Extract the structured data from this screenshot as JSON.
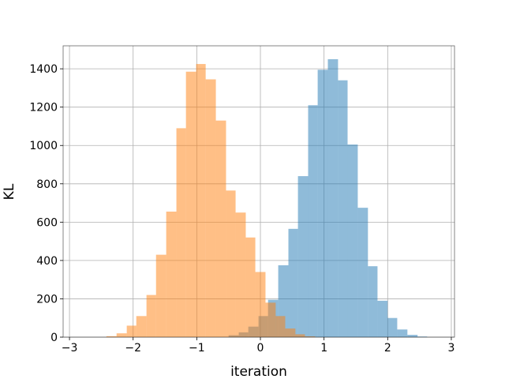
{
  "chart_data": {
    "type": "histogram",
    "xlabel": "iteration",
    "ylabel": "KL",
    "xlim": [
      -3.1,
      3.05
    ],
    "ylim": [
      0,
      1520
    ],
    "x_ticks": [
      -3,
      -2,
      -1,
      0,
      1,
      2,
      3
    ],
    "y_ticks": [
      0,
      200,
      400,
      600,
      800,
      1000,
      1200,
      1400
    ],
    "grid": true,
    "bin_width": 0.157,
    "series": [
      {
        "color": "#1f77b4",
        "opacity": 0.5,
        "bins": [
          {
            "x0": -0.5,
            "x1": -0.34,
            "count": 10
          },
          {
            "x0": -0.34,
            "x1": -0.19,
            "count": 25
          },
          {
            "x0": -0.19,
            "x1": -0.03,
            "count": 55
          },
          {
            "x0": -0.03,
            "x1": 0.12,
            "count": 110
          },
          {
            "x0": 0.12,
            "x1": 0.28,
            "count": 195
          },
          {
            "x0": 0.28,
            "x1": 0.44,
            "count": 375
          },
          {
            "x0": 0.44,
            "x1": 0.59,
            "count": 565
          },
          {
            "x0": 0.59,
            "x1": 0.75,
            "count": 840
          },
          {
            "x0": 0.75,
            "x1": 0.9,
            "count": 1210
          },
          {
            "x0": 0.9,
            "x1": 1.06,
            "count": 1395
          },
          {
            "x0": 1.06,
            "x1": 1.22,
            "count": 1450
          },
          {
            "x0": 1.22,
            "x1": 1.37,
            "count": 1340
          },
          {
            "x0": 1.37,
            "x1": 1.53,
            "count": 1005
          },
          {
            "x0": 1.53,
            "x1": 1.69,
            "count": 675
          },
          {
            "x0": 1.69,
            "x1": 1.84,
            "count": 370
          },
          {
            "x0": 1.84,
            "x1": 2.0,
            "count": 190
          },
          {
            "x0": 2.0,
            "x1": 2.15,
            "count": 100
          },
          {
            "x0": 2.15,
            "x1": 2.31,
            "count": 40
          },
          {
            "x0": 2.31,
            "x1": 2.47,
            "count": 12
          },
          {
            "x0": 2.47,
            "x1": 2.62,
            "count": 3
          }
        ]
      },
      {
        "color": "#ff7f0e",
        "opacity": 0.5,
        "bins": [
          {
            "x0": -2.42,
            "x1": -2.26,
            "count": 5
          },
          {
            "x0": -2.26,
            "x1": -2.1,
            "count": 20
          },
          {
            "x0": -2.1,
            "x1": -1.95,
            "count": 60
          },
          {
            "x0": -1.95,
            "x1": -1.79,
            "count": 110
          },
          {
            "x0": -1.79,
            "x1": -1.64,
            "count": 220
          },
          {
            "x0": -1.64,
            "x1": -1.48,
            "count": 430
          },
          {
            "x0": -1.48,
            "x1": -1.32,
            "count": 655
          },
          {
            "x0": -1.32,
            "x1": -1.17,
            "count": 1090
          },
          {
            "x0": -1.17,
            "x1": -1.01,
            "count": 1385
          },
          {
            "x0": -1.01,
            "x1": -0.86,
            "count": 1425
          },
          {
            "x0": -0.86,
            "x1": -0.7,
            "count": 1345
          },
          {
            "x0": -0.7,
            "x1": -0.54,
            "count": 1130
          },
          {
            "x0": -0.54,
            "x1": -0.39,
            "count": 765
          },
          {
            "x0": -0.39,
            "x1": -0.23,
            "count": 650
          },
          {
            "x0": -0.23,
            "x1": -0.08,
            "count": 520
          },
          {
            "x0": -0.08,
            "x1": 0.08,
            "count": 340
          },
          {
            "x0": 0.08,
            "x1": 0.24,
            "count": 180
          },
          {
            "x0": 0.24,
            "x1": 0.39,
            "count": 110
          },
          {
            "x0": 0.39,
            "x1": 0.55,
            "count": 45
          },
          {
            "x0": 0.55,
            "x1": 0.7,
            "count": 15
          },
          {
            "x0": 0.7,
            "x1": 0.86,
            "count": 4
          }
        ]
      }
    ]
  }
}
